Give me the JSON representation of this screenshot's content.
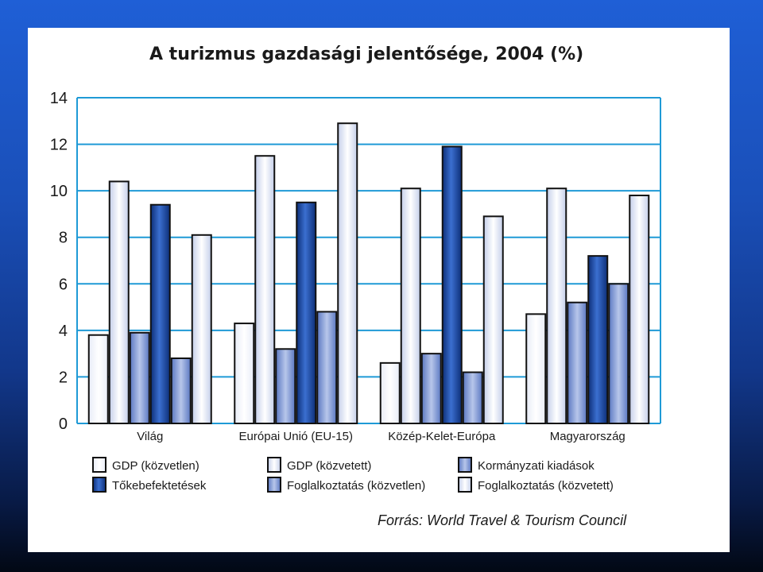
{
  "chart_data": {
    "type": "bar",
    "title": "A turizmus gazdasági jelentősége, 2004 (%)",
    "categories": [
      "Világ",
      "Európai Unió (EU-15)",
      "Közép-Kelet-Európa",
      "Magyarország"
    ],
    "ylim": [
      0,
      14
    ],
    "yticks": [
      0,
      2,
      4,
      6,
      8,
      10,
      12,
      14
    ],
    "grid": true,
    "legend_position": "bottom",
    "series": [
      {
        "name": "GDP (közvetlen)",
        "values": [
          3.8,
          4.3,
          2.6,
          4.7
        ],
        "color": "#f4f6fc"
      },
      {
        "name": "GDP (közvetett)",
        "values": [
          10.4,
          11.5,
          10.1,
          10.1
        ],
        "color": "#e6ebf7"
      },
      {
        "name": "Kormányzati kiadások",
        "values": [
          3.9,
          3.2,
          3.0,
          5.2
        ],
        "color": "#a3b6e0"
      },
      {
        "name": "Tőkebefektetések",
        "values": [
          9.4,
          9.5,
          11.9,
          7.2
        ],
        "color": "#1f4fae"
      },
      {
        "name": "Foglalkoztatás (közvetlen)",
        "values": [
          2.8,
          4.8,
          2.2,
          6.0
        ],
        "color": "#8fa5d8"
      },
      {
        "name": "Foglalkoztatás (közvetett)",
        "values": [
          8.1,
          12.9,
          8.9,
          9.8
        ],
        "color": "#dbe2f3"
      }
    ],
    "source": "Forrás: World Travel & Tourism Council"
  }
}
